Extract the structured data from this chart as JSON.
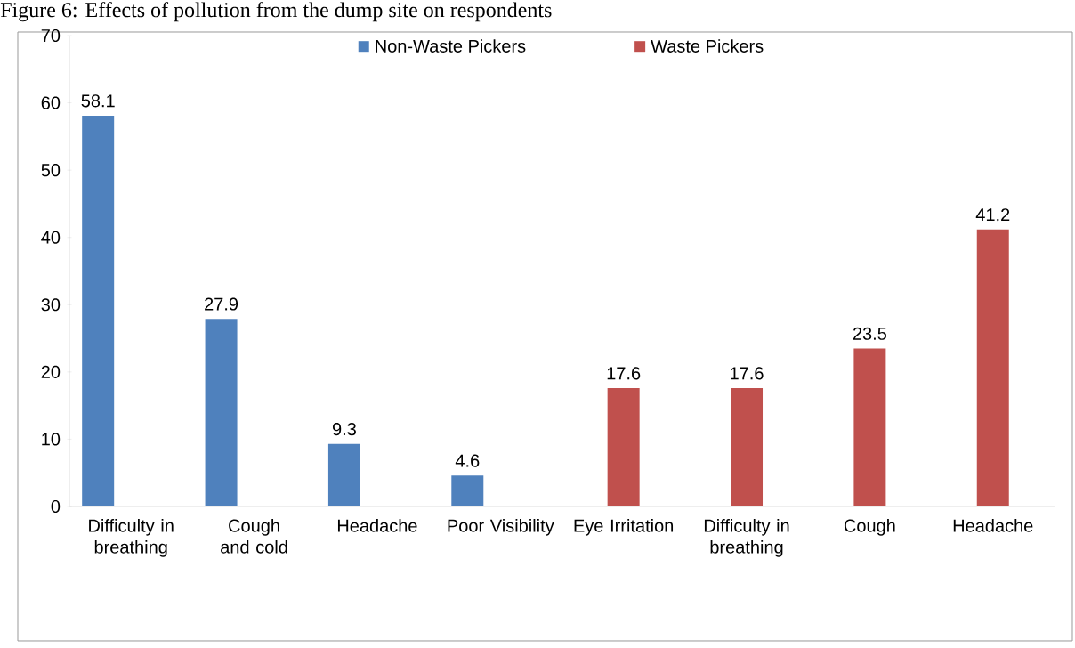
{
  "chart_data": {
    "type": "bar",
    "title": "Figure 6:      Effects of pollution from the dump site on respondents",
    "categories": [
      "Difficulty in breathing",
      "Cough and cold",
      "Headache",
      "Poor Visibility",
      "Eye Irritation",
      "Difficulty in breathing",
      "Cough",
      "Headache"
    ],
    "series": [
      {
        "name": "Non-Waste Pickers",
        "color": "#4f81bd",
        "values": [
          58.1,
          27.9,
          9.3,
          4.6,
          null,
          null,
          null,
          null
        ]
      },
      {
        "name": "Waste Pickers",
        "color": "#c0504d",
        "values": [
          null,
          null,
          null,
          null,
          17.6,
          17.6,
          23.5,
          41.2
        ]
      }
    ],
    "ylim": [
      0,
      70
    ],
    "yticks": [
      0,
      10,
      20,
      30,
      40,
      50,
      60,
      70
    ],
    "grid": false,
    "legend": "top",
    "data_labels": true
  }
}
